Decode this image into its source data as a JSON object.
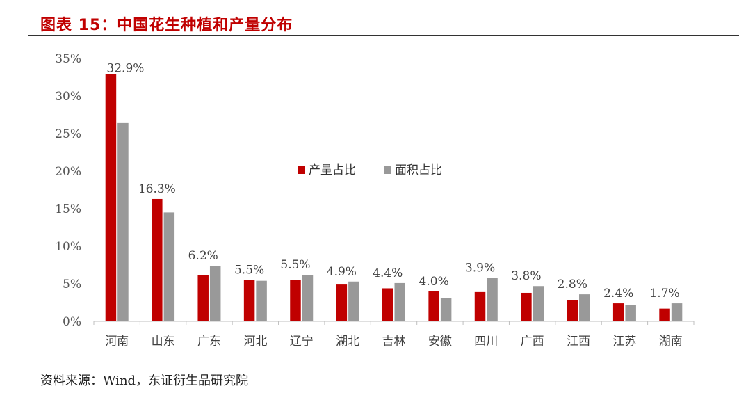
{
  "title": "图表 15：中国花生种植和产量分布",
  "source": "资料来源：Wind，东证衍生品研究院",
  "chart_data": {
    "type": "bar",
    "categories": [
      "河南",
      "山东",
      "广东",
      "河北",
      "辽宁",
      "湖北",
      "吉林",
      "安徽",
      "四川",
      "广西",
      "江西",
      "江苏",
      "湖南"
    ],
    "series": [
      {
        "name": "产量占比",
        "color": "#c00000",
        "values": [
          32.9,
          16.3,
          6.2,
          5.5,
          5.5,
          4.9,
          4.4,
          4.0,
          3.9,
          3.8,
          2.8,
          2.4,
          1.7
        ],
        "labels": [
          "32.9%",
          "16.3%",
          "6.2%",
          "5.5%",
          "5.5%",
          "4.9%",
          "4.4%",
          "4.0%",
          "3.9%",
          "3.8%",
          "2.8%",
          "2.4%",
          "1.7%"
        ]
      },
      {
        "name": "面积占比",
        "color": "#999999",
        "values": [
          26.4,
          14.5,
          7.4,
          5.4,
          6.2,
          5.3,
          5.1,
          3.1,
          5.8,
          4.7,
          3.6,
          2.2,
          2.4
        ]
      }
    ],
    "ylim": [
      0,
      35
    ],
    "yticks": [
      "0%",
      "5%",
      "10%",
      "15%",
      "20%",
      "25%",
      "30%",
      "35%"
    ],
    "legend_position": "center"
  }
}
